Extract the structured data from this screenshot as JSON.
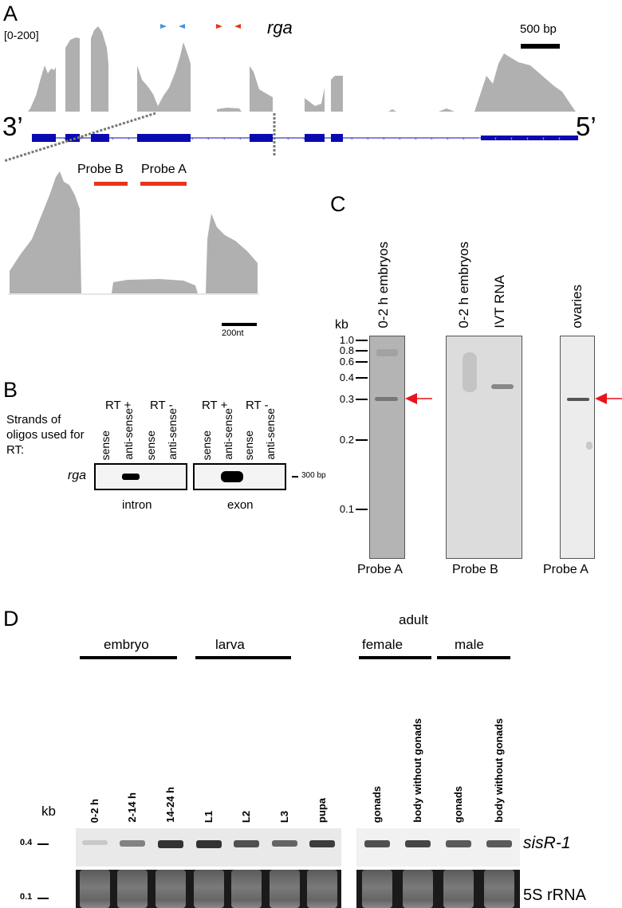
{
  "colors": {
    "coverage": "#b0b0b0",
    "gene_model": "#0a0ab0",
    "probe": "#e8341c",
    "primer_blue": "#4a8ee8",
    "primer_red": "#e8341c",
    "arrow": "#e8141c"
  },
  "panel_a": {
    "letter": "A",
    "range": "[0-200]",
    "gene": "rga",
    "scale_bar": "500 bp",
    "end_3": "3’",
    "end_5": "5’",
    "probe_b": "Probe B",
    "probe_a": "Probe A",
    "zoom_scale_bar": "200nt"
  },
  "panel_b": {
    "letter": "B",
    "rt_labels": [
      "RT +",
      "RT -",
      "RT +",
      "RT -"
    ],
    "strand_labels": [
      "sense",
      "anti-sense",
      "sense",
      "anti-sense",
      "sense",
      "anti-sense",
      "sense",
      "anti-sense"
    ],
    "row_caption": "Strands of oligos used for RT:",
    "gene": "rga",
    "size_marker": "300 bp",
    "gels": [
      "intron",
      "exon"
    ]
  },
  "panel_c": {
    "letter": "C",
    "unit": "kb",
    "markers": [
      "1.0",
      "0.8",
      "0.6",
      "0.4",
      "0.3",
      "0.2",
      "0.1"
    ],
    "lanes": [
      "0-2 h embryos",
      "0-2 h embryos",
      "IVT RNA",
      "ovaries"
    ],
    "probes": [
      "Probe A",
      "Probe B",
      "Probe A"
    ]
  },
  "panel_d": {
    "letter": "D",
    "unit": "kb",
    "markers": [
      "0.4",
      "0.1"
    ],
    "groups": {
      "embryo": "embryo",
      "larva": "larva",
      "adult": "adult",
      "female": "female",
      "male": "male"
    },
    "lanes_left": [
      "0-2 h",
      "2-14 h",
      "14-24 h",
      "L1",
      "L2",
      "L3",
      "pupa"
    ],
    "lanes_right": [
      "gonads",
      "body without gonads",
      "gonads",
      "body without gonads"
    ],
    "band_intensity_left": [
      0.15,
      0.5,
      0.9,
      0.9,
      0.75,
      0.65,
      0.85
    ],
    "band_intensity_right": [
      0.75,
      0.8,
      0.7,
      0.7
    ],
    "row_labels": [
      "sisR-1",
      "5S rRNA"
    ]
  }
}
